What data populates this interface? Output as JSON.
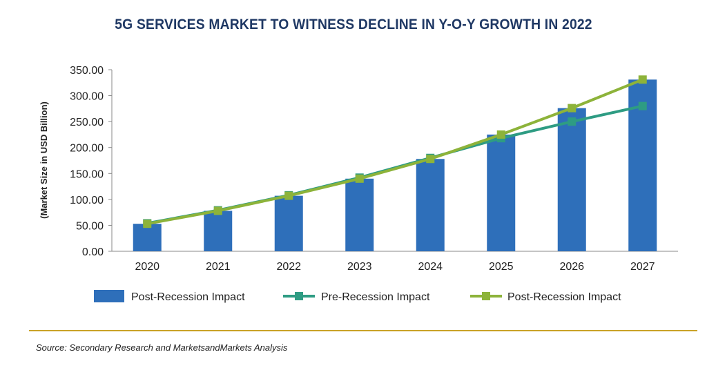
{
  "chart_data": {
    "type": "bar",
    "title": "5G SERVICES MARKET TO WITNESS DECLINE IN Y-O-Y GROWTH IN 2022",
    "xlabel": "",
    "ylabel": "(Market Size in USD Billion)",
    "ylim": [
      0,
      350
    ],
    "yticks": [
      "0.00",
      "50.00",
      "100.00",
      "150.00",
      "200.00",
      "250.00",
      "300.00",
      "350.00"
    ],
    "categories": [
      "2020",
      "2021",
      "2022",
      "2023",
      "2024",
      "2025",
      "2026",
      "2027"
    ],
    "series": [
      {
        "name": "Post-Recession Impact",
        "kind": "bar",
        "color": "#2e6fba",
        "values": [
          53,
          78,
          107,
          140,
          178,
          225,
          276,
          331
        ]
      },
      {
        "name": "Pre-Recession Impact",
        "kind": "line",
        "color": "#2e9c83",
        "values": [
          54,
          79,
          108,
          142,
          180,
          218,
          250,
          280
        ]
      },
      {
        "name": "Post-Recession Impact",
        "kind": "line",
        "color": "#8db33a",
        "values": [
          53,
          78,
          107,
          140,
          178,
          225,
          276,
          331
        ]
      }
    ],
    "legend_position": "bottom",
    "grid": false
  },
  "source": "Source: Secondary Research and MarketsandMarkets Analysis"
}
